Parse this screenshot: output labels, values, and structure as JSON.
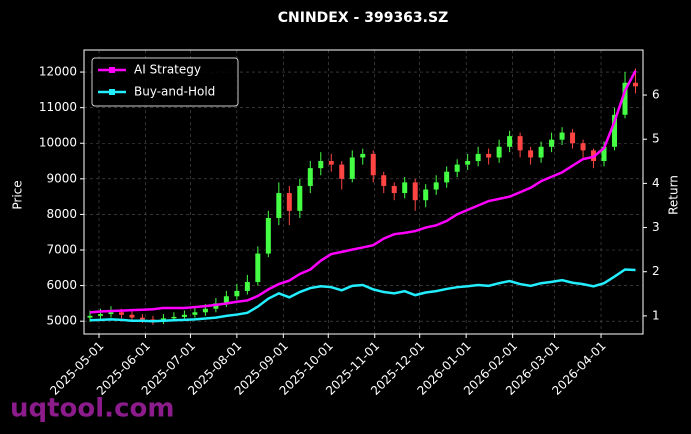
{
  "chart_data": {
    "type": "candlestick",
    "title": "CNINDEX - 399363.SZ",
    "y_label": "Price",
    "y2_label": "Return",
    "watermark": "uqtool.com",
    "grid": true,
    "legend": "upper left",
    "up_color": "#44ff44",
    "down_color": "#ff4444",
    "x": [
      "2025-04-25",
      "2025-05-02",
      "2025-05-09",
      "2025-05-16",
      "2025-05-23",
      "2025-05-30",
      "2025-06-06",
      "2025-06-13",
      "2025-06-20",
      "2025-06-27",
      "2025-07-04",
      "2025-07-11",
      "2025-07-18",
      "2025-07-25",
      "2025-08-01",
      "2025-08-08",
      "2025-08-15",
      "2025-08-22",
      "2025-08-29",
      "2025-09-05",
      "2025-09-12",
      "2025-09-19",
      "2025-09-26",
      "2025-10-03",
      "2025-10-10",
      "2025-10-17",
      "2025-10-24",
      "2025-10-31",
      "2025-11-07",
      "2025-11-14",
      "2025-11-21",
      "2025-11-28",
      "2025-12-05",
      "2025-12-12",
      "2025-12-19",
      "2025-12-26",
      "2026-01-02",
      "2026-01-09",
      "2026-01-16",
      "2026-01-23",
      "2026-01-30",
      "2026-02-06",
      "2026-02-13",
      "2026-02-20",
      "2026-02-27",
      "2026-03-06",
      "2026-03-13",
      "2026-03-20",
      "2026-03-27",
      "2026-04-03",
      "2026-04-10",
      "2026-04-17",
      "2026-04-24"
    ],
    "ohlc": [
      [
        5100,
        5300,
        4980,
        5150
      ],
      [
        5150,
        5350,
        5050,
        5200
      ],
      [
        5200,
        5420,
        5100,
        5250
      ],
      [
        5250,
        5350,
        5080,
        5180
      ],
      [
        5180,
        5280,
        4980,
        5100
      ],
      [
        5100,
        5200,
        4950,
        5050
      ],
      [
        5050,
        5150,
        4900,
        5000
      ],
      [
        5000,
        5200,
        4920,
        5080
      ],
      [
        5080,
        5250,
        5000,
        5120
      ],
      [
        5120,
        5300,
        5050,
        5180
      ],
      [
        5180,
        5380,
        5100,
        5250
      ],
      [
        5250,
        5480,
        5150,
        5350
      ],
      [
        5350,
        5650,
        5250,
        5500
      ],
      [
        5500,
        5850,
        5400,
        5700
      ],
      [
        5700,
        6050,
        5600,
        5850
      ],
      [
        5850,
        6300,
        5750,
        6100
      ],
      [
        6100,
        7100,
        6000,
        6900
      ],
      [
        6900,
        8100,
        6800,
        7900
      ],
      [
        7900,
        8900,
        7700,
        8600
      ],
      [
        8600,
        8800,
        7700,
        8100
      ],
      [
        8100,
        9000,
        7900,
        8800
      ],
      [
        8800,
        9500,
        8600,
        9300
      ],
      [
        9300,
        9750,
        9100,
        9500
      ],
      [
        9500,
        9700,
        9200,
        9400
      ],
      [
        9400,
        9500,
        8700,
        9000
      ],
      [
        9000,
        9800,
        8900,
        9600
      ],
      [
        9600,
        9850,
        9400,
        9700
      ],
      [
        9700,
        9800,
        8900,
        9100
      ],
      [
        9100,
        9200,
        8600,
        8800
      ],
      [
        8800,
        8900,
        8400,
        8600
      ],
      [
        8600,
        9050,
        8450,
        8900
      ],
      [
        8900,
        9000,
        8100,
        8400
      ],
      [
        8400,
        8850,
        8200,
        8700
      ],
      [
        8700,
        9100,
        8550,
        8900
      ],
      [
        8900,
        9350,
        8750,
        9200
      ],
      [
        9200,
        9550,
        9050,
        9400
      ],
      [
        9400,
        9700,
        9250,
        9500
      ],
      [
        9500,
        9900,
        9350,
        9700
      ],
      [
        9700,
        9850,
        9400,
        9600
      ],
      [
        9600,
        10100,
        9450,
        9900
      ],
      [
        9900,
        10350,
        9750,
        10200
      ],
      [
        10200,
        10300,
        9600,
        9800
      ],
      [
        9800,
        9900,
        9400,
        9600
      ],
      [
        9600,
        10050,
        9450,
        9900
      ],
      [
        9900,
        10300,
        9750,
        10100
      ],
      [
        10100,
        10450,
        9950,
        10300
      ],
      [
        10300,
        10400,
        9850,
        10000
      ],
      [
        10000,
        10100,
        9600,
        9800
      ],
      [
        9800,
        9850,
        9300,
        9500
      ],
      [
        9500,
        10050,
        9350,
        9900
      ],
      [
        9900,
        11000,
        9800,
        10800
      ],
      [
        10800,
        12000,
        10700,
        11700
      ],
      [
        11700,
        12100,
        11400,
        11600
      ]
    ],
    "series": [
      {
        "name": "AI Strategy",
        "color": "#ff00ff",
        "axis": "y2",
        "values": [
          1.08,
          1.1,
          1.11,
          1.12,
          1.13,
          1.14,
          1.15,
          1.18,
          1.18,
          1.18,
          1.2,
          1.22,
          1.25,
          1.28,
          1.32,
          1.35,
          1.45,
          1.6,
          1.72,
          1.8,
          1.95,
          2.05,
          2.25,
          2.4,
          2.45,
          2.5,
          2.55,
          2.6,
          2.75,
          2.85,
          2.88,
          2.92,
          3.0,
          3.05,
          3.15,
          3.3,
          3.4,
          3.5,
          3.6,
          3.65,
          3.7,
          3.8,
          3.9,
          4.05,
          4.15,
          4.25,
          4.4,
          4.55,
          4.6,
          4.8,
          5.4,
          6.1,
          6.55
        ]
      },
      {
        "name": "Buy-and-Hold",
        "color": "#22eeff",
        "axis": "y2",
        "values": [
          0.9,
          0.91,
          0.92,
          0.91,
          0.89,
          0.89,
          0.88,
          0.89,
          0.9,
          0.91,
          0.92,
          0.94,
          0.96,
          1.0,
          1.03,
          1.07,
          1.21,
          1.39,
          1.51,
          1.42,
          1.54,
          1.63,
          1.67,
          1.65,
          1.58,
          1.68,
          1.7,
          1.6,
          1.54,
          1.51,
          1.56,
          1.47,
          1.53,
          1.56,
          1.61,
          1.65,
          1.67,
          1.7,
          1.68,
          1.74,
          1.79,
          1.72,
          1.68,
          1.74,
          1.77,
          1.81,
          1.75,
          1.72,
          1.67,
          1.74,
          1.89,
          2.05,
          2.04
        ]
      }
    ],
    "xlim": [
      "2025-04-21",
      "2026-04-29"
    ],
    "xticks": [
      "2025-05-01",
      "2025-06-01",
      "2025-07-01",
      "2025-08-01",
      "2025-09-01",
      "2025-10-01",
      "2025-11-01",
      "2025-12-01",
      "2026-01-01",
      "2026-02-01",
      "2026-03-01",
      "2026-04-01"
    ],
    "ylim": [
      4640,
      12620
    ],
    "yticks": [
      5000,
      6000,
      7000,
      8000,
      9000,
      10000,
      11000,
      12000
    ],
    "y2lim": [
      0.59,
      7.02
    ],
    "y2ticks": [
      1,
      2,
      3,
      4,
      5,
      6
    ]
  }
}
